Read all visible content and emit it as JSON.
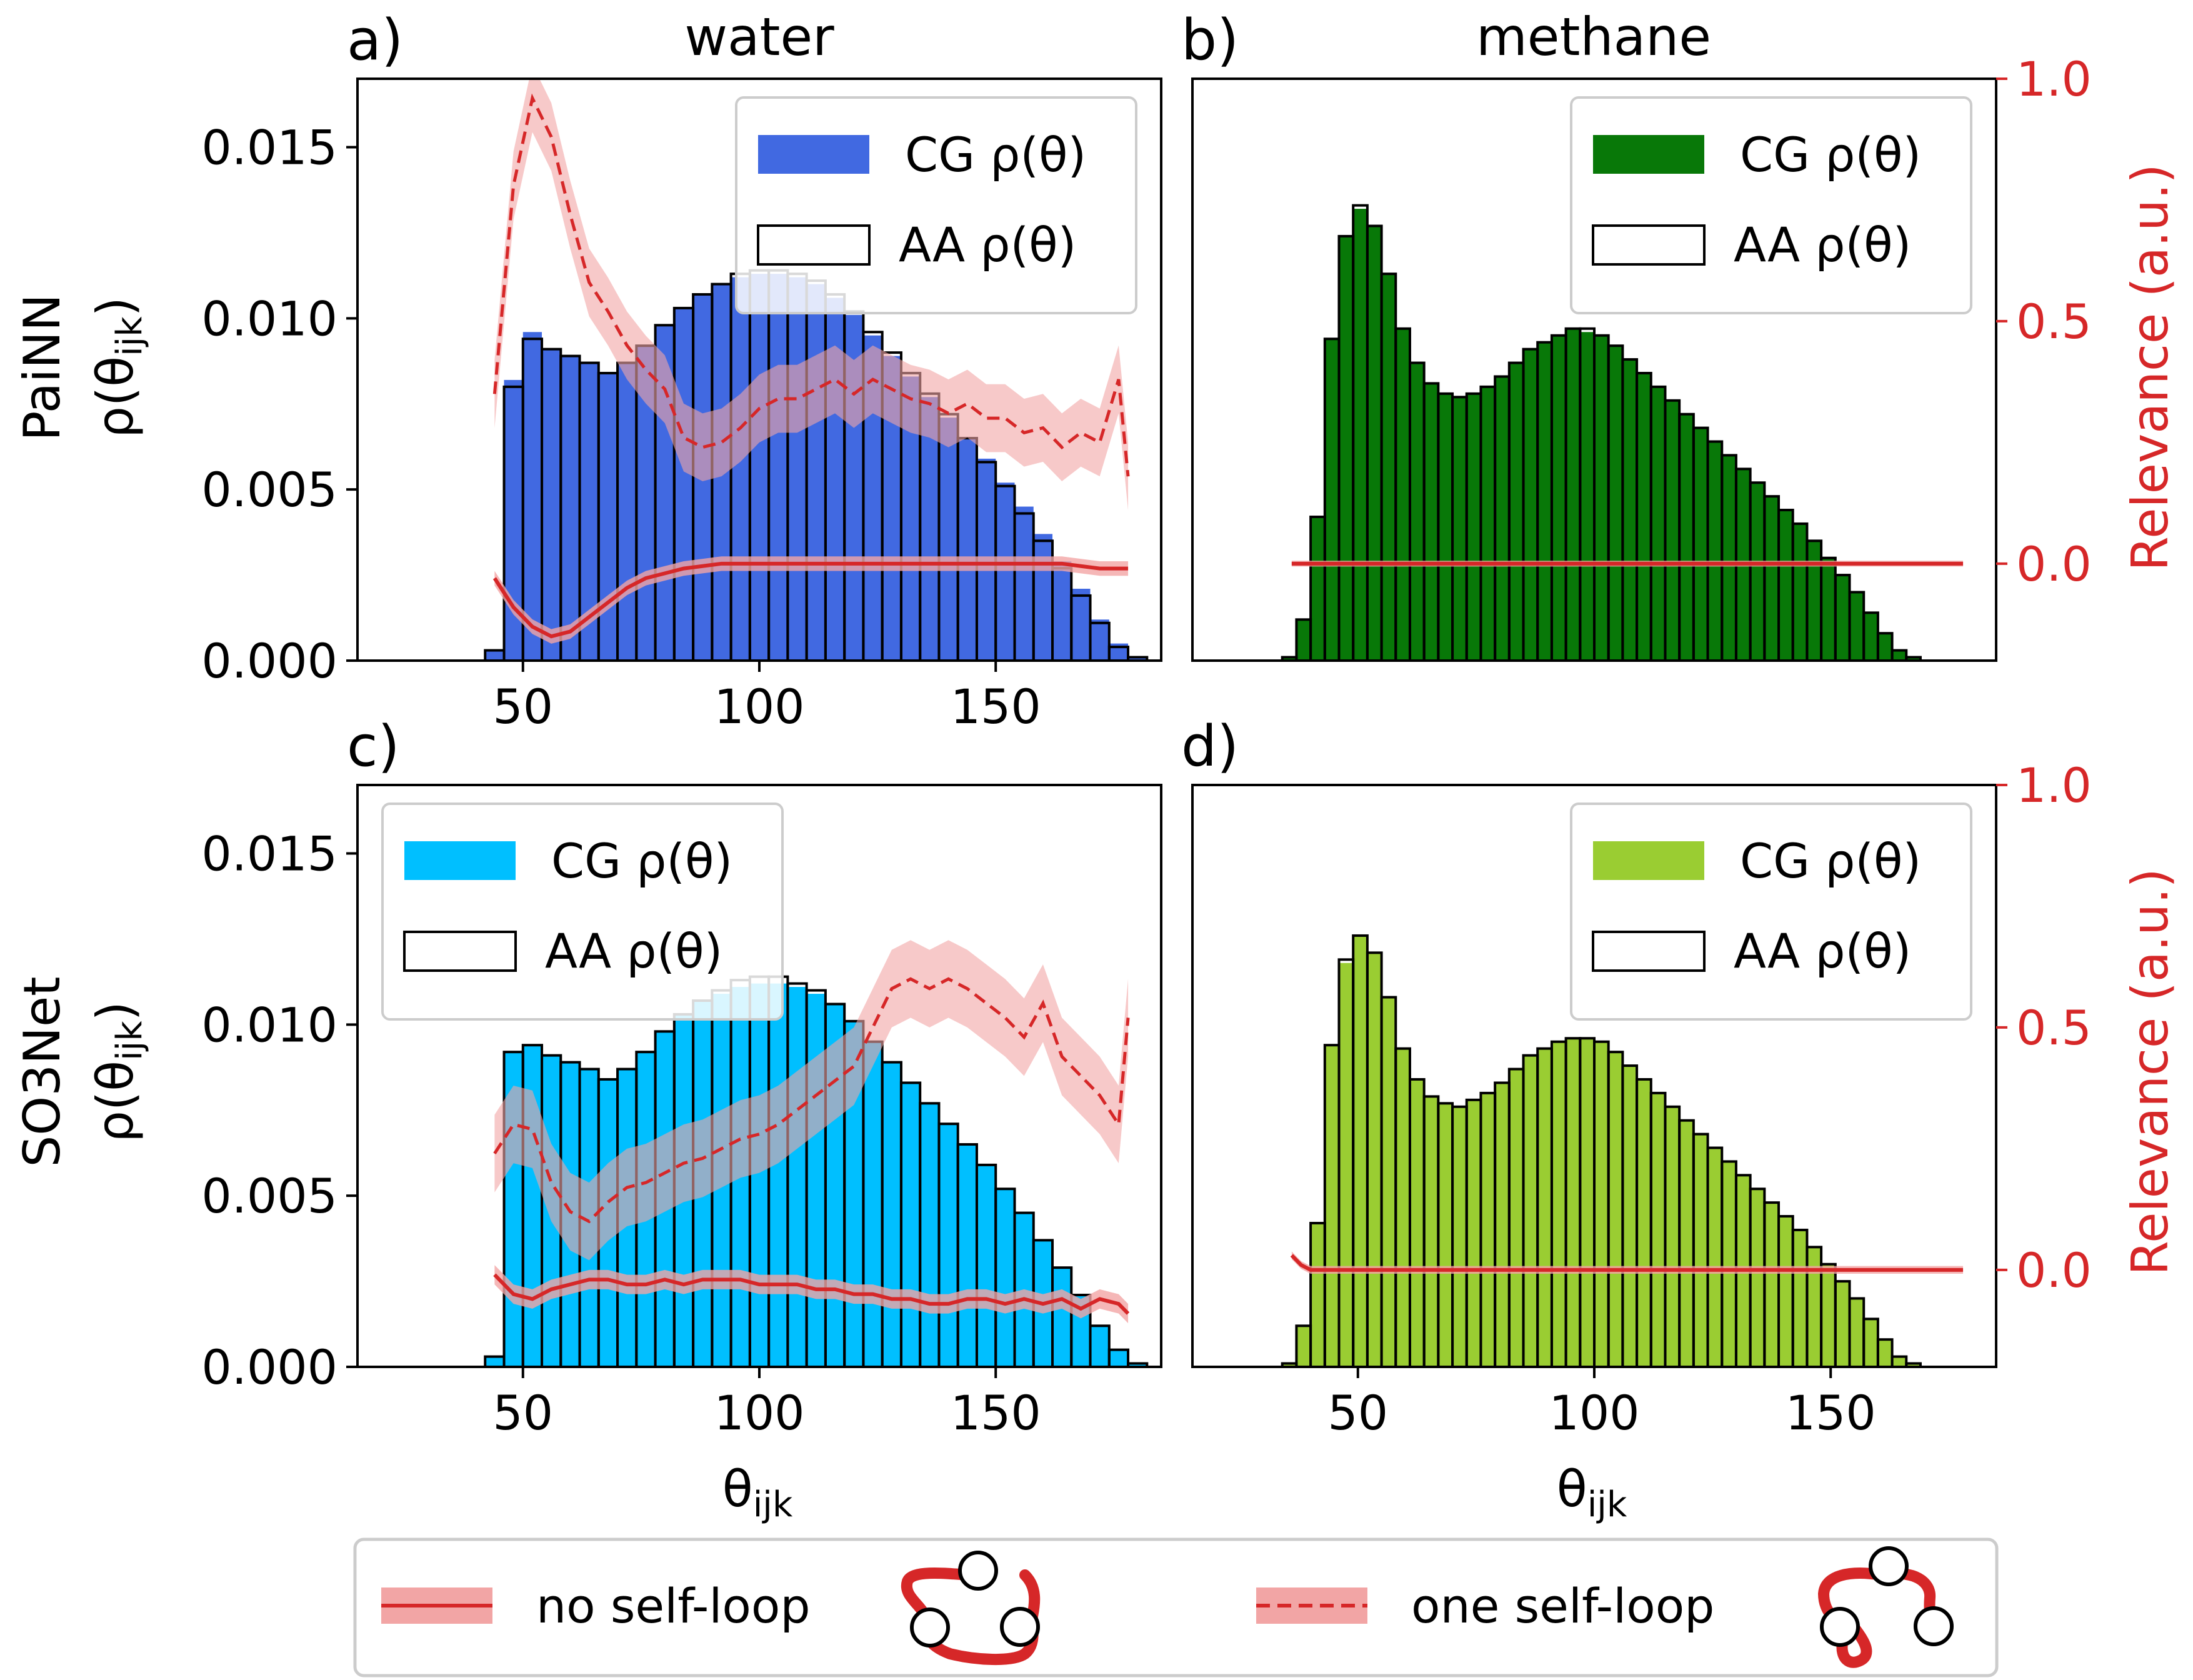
{
  "figure": {
    "column_titles": [
      "water",
      "methane"
    ],
    "row_titles": [
      "PaiNN",
      "SO3Net"
    ],
    "ylabel_hist": "ρ(θ",
    "ylabel_hist_sub": "ijk",
    "ylabel_right": "Relevance (a.u.)",
    "xlabel": "θ",
    "xlabel_sub": "ijk"
  },
  "colors": {
    "water_painn": "#4169e1",
    "methane_painn": "#087808",
    "water_so3net": "#00bfff",
    "methane_so3net": "#9acd32",
    "relevance": "#d62728",
    "band": "#f2a5a5"
  },
  "legend_bottom": {
    "no_self_loop": "no self-loop",
    "one_self_loop": "one self-loop"
  },
  "chart_data": [
    {
      "panel": "a)",
      "title": "water",
      "type": "bar",
      "xlim": [
        15,
        185
      ],
      "ylim": [
        0,
        0.017
      ],
      "y2lim": [
        -0.2,
        1.0
      ],
      "xticks": [
        "50",
        "100",
        "150"
      ],
      "yticks": [
        "0.000",
        "0.005",
        "0.010",
        "0.015"
      ],
      "y2ticks": [],
      "legend": {
        "cg": "CG ρ(θ)",
        "aa": "AA ρ(θ)",
        "position": "top-right"
      },
      "bin_edges_start": 42,
      "bin_width": 4,
      "cg_values": [
        0.0003,
        0.0082,
        0.0096,
        0.0091,
        0.0089,
        0.0087,
        0.0084,
        0.0087,
        0.0092,
        0.0098,
        0.0103,
        0.0107,
        0.011,
        0.0112,
        0.0113,
        0.0113,
        0.0112,
        0.011,
        0.0106,
        0.0101,
        0.0095,
        0.0089,
        0.0083,
        0.0077,
        0.0071,
        0.0065,
        0.0059,
        0.0052,
        0.0045,
        0.0037,
        0.0029,
        0.0021,
        0.0012,
        0.0005,
        0.0001
      ],
      "aa_values": [
        0.0003,
        0.008,
        0.0094,
        0.0091,
        0.0089,
        0.0087,
        0.0084,
        0.0087,
        0.0092,
        0.0098,
        0.0103,
        0.0107,
        0.011,
        0.0113,
        0.0114,
        0.0114,
        0.0113,
        0.0111,
        0.0107,
        0.0102,
        0.0096,
        0.009,
        0.0084,
        0.0078,
        0.0072,
        0.0065,
        0.0058,
        0.0051,
        0.0043,
        0.0035,
        0.0027,
        0.0019,
        0.0011,
        0.0004,
        0.0001
      ],
      "relevance_x": [
        44,
        48,
        52,
        56,
        60,
        64,
        68,
        72,
        76,
        80,
        84,
        88,
        92,
        96,
        100,
        104,
        108,
        112,
        116,
        120,
        124,
        128,
        132,
        136,
        140,
        144,
        148,
        152,
        156,
        160,
        164,
        168,
        172,
        176,
        178
      ],
      "no_self_loop": [
        -0.03,
        -0.09,
        -0.13,
        -0.15,
        -0.14,
        -0.11,
        -0.08,
        -0.05,
        -0.03,
        -0.02,
        -0.01,
        -0.005,
        0.0,
        0.0,
        0.0,
        0.0,
        0.0,
        0.0,
        0.0,
        0.0,
        0.0,
        0.0,
        0.0,
        0.0,
        0.0,
        0.0,
        0.0,
        0.0,
        0.0,
        0.0,
        0.0,
        -0.005,
        -0.01,
        -0.01,
        -0.01
      ],
      "no_self_loop_band": 0.015,
      "one_self_loop": [
        0.35,
        0.78,
        0.96,
        0.88,
        0.72,
        0.58,
        0.52,
        0.45,
        0.4,
        0.36,
        0.26,
        0.24,
        0.25,
        0.28,
        0.32,
        0.34,
        0.34,
        0.36,
        0.38,
        0.35,
        0.38,
        0.36,
        0.34,
        0.33,
        0.31,
        0.33,
        0.3,
        0.3,
        0.27,
        0.28,
        0.24,
        0.27,
        0.25,
        0.38,
        0.18
      ],
      "one_self_loop_band": 0.07
    },
    {
      "panel": "b)",
      "title": "methane",
      "type": "bar",
      "xlim": [
        15,
        185
      ],
      "ylim": [
        0,
        0.017
      ],
      "y2lim": [
        -0.2,
        1.0
      ],
      "xticks": [],
      "yticks": [],
      "y2ticks": [
        "0.0",
        "0.5",
        "1.0"
      ],
      "legend": {
        "cg": "CG ρ(θ)",
        "aa": "AA ρ(θ)",
        "position": "top-right"
      },
      "bin_edges_start": 34,
      "bin_width": 3,
      "cg_values": [
        0.0001,
        0.0012,
        0.0042,
        0.0094,
        0.0124,
        0.0132,
        0.0127,
        0.0113,
        0.0097,
        0.0087,
        0.0081,
        0.0078,
        0.0077,
        0.0078,
        0.008,
        0.0083,
        0.0087,
        0.0091,
        0.0093,
        0.0095,
        0.0097,
        0.0096,
        0.0095,
        0.0092,
        0.0088,
        0.0084,
        0.008,
        0.0076,
        0.0072,
        0.0068,
        0.0064,
        0.006,
        0.0056,
        0.0052,
        0.0048,
        0.0044,
        0.004,
        0.0035,
        0.003,
        0.0025,
        0.002,
        0.0014,
        0.0008,
        0.0003,
        0.0001
      ],
      "aa_values": [
        0.0001,
        0.0012,
        0.0042,
        0.0094,
        0.0124,
        0.0133,
        0.0127,
        0.0113,
        0.0097,
        0.0087,
        0.0081,
        0.0078,
        0.0077,
        0.0078,
        0.008,
        0.0083,
        0.0087,
        0.0091,
        0.0093,
        0.0095,
        0.0097,
        0.0097,
        0.0095,
        0.0092,
        0.0088,
        0.0084,
        0.008,
        0.0076,
        0.0072,
        0.0068,
        0.0064,
        0.006,
        0.0056,
        0.0052,
        0.0048,
        0.0044,
        0.004,
        0.0035,
        0.003,
        0.0025,
        0.002,
        0.0014,
        0.0008,
        0.0003,
        0.0001
      ],
      "relevance_x": [
        36,
        50,
        75,
        100,
        125,
        150,
        165,
        178
      ],
      "no_self_loop": [
        0.0,
        0.0,
        0.0,
        0.0,
        0.0,
        0.0,
        0.0,
        0.0
      ],
      "no_self_loop_band": 0.006
    },
    {
      "panel": "c)",
      "title": "",
      "type": "bar",
      "xlim": [
        15,
        185
      ],
      "ylim": [
        0,
        0.017
      ],
      "y2lim": [
        -0.2,
        1.0
      ],
      "xticks": [
        "50",
        "100",
        "150"
      ],
      "yticks": [
        "0.000",
        "0.005",
        "0.010",
        "0.015"
      ],
      "y2ticks": [],
      "legend": {
        "cg": "CG ρ(θ)",
        "aa": "AA ρ(θ)",
        "position": "top-left"
      },
      "bin_edges_start": 42,
      "bin_width": 4,
      "cg_values": [
        0.0003,
        0.0092,
        0.0094,
        0.0091,
        0.0089,
        0.0087,
        0.0084,
        0.0087,
        0.0092,
        0.0098,
        0.0103,
        0.0107,
        0.0109,
        0.0111,
        0.0112,
        0.0112,
        0.0111,
        0.0109,
        0.0106,
        0.0101,
        0.0095,
        0.0089,
        0.0083,
        0.0077,
        0.0071,
        0.0065,
        0.0059,
        0.0052,
        0.0045,
        0.0037,
        0.0029,
        0.0021,
        0.0012,
        0.0005,
        0.0001
      ],
      "aa_values": [
        0.0003,
        0.0092,
        0.0094,
        0.0091,
        0.0089,
        0.0087,
        0.0084,
        0.0087,
        0.0092,
        0.0098,
        0.0103,
        0.0107,
        0.011,
        0.0113,
        0.0114,
        0.0114,
        0.0112,
        0.011,
        0.0106,
        0.0101,
        0.0095,
        0.0089,
        0.0083,
        0.0077,
        0.0071,
        0.0065,
        0.0059,
        0.0052,
        0.0045,
        0.0037,
        0.0029,
        0.0021,
        0.0012,
        0.0005,
        0.0001
      ],
      "relevance_x": [
        44,
        48,
        52,
        56,
        60,
        64,
        68,
        72,
        76,
        80,
        84,
        88,
        92,
        96,
        100,
        104,
        108,
        112,
        116,
        120,
        124,
        128,
        132,
        136,
        140,
        144,
        148,
        152,
        156,
        160,
        164,
        168,
        172,
        176,
        178
      ],
      "no_self_loop": [
        -0.01,
        -0.05,
        -0.06,
        -0.04,
        -0.03,
        -0.02,
        -0.02,
        -0.03,
        -0.03,
        -0.02,
        -0.03,
        -0.02,
        -0.02,
        -0.02,
        -0.03,
        -0.03,
        -0.03,
        -0.04,
        -0.04,
        -0.05,
        -0.05,
        -0.06,
        -0.06,
        -0.07,
        -0.07,
        -0.06,
        -0.06,
        -0.07,
        -0.06,
        -0.07,
        -0.06,
        -0.08,
        -0.06,
        -0.07,
        -0.09
      ],
      "no_self_loop_band": 0.02,
      "one_self_loop": [
        0.24,
        0.3,
        0.29,
        0.18,
        0.12,
        0.1,
        0.14,
        0.17,
        0.18,
        0.2,
        0.22,
        0.23,
        0.25,
        0.27,
        0.28,
        0.3,
        0.33,
        0.36,
        0.39,
        0.42,
        0.5,
        0.58,
        0.6,
        0.58,
        0.6,
        0.58,
        0.55,
        0.52,
        0.48,
        0.55,
        0.44,
        0.4,
        0.36,
        0.3,
        0.52
      ],
      "one_self_loop_band": 0.08
    },
    {
      "panel": "d)",
      "title": "",
      "type": "bar",
      "xlim": [
        15,
        185
      ],
      "ylim": [
        0,
        0.017
      ],
      "y2lim": [
        -0.2,
        1.0
      ],
      "xticks": [
        "50",
        "100",
        "150"
      ],
      "yticks": [],
      "y2ticks": [
        "0.0",
        "0.5",
        "1.0"
      ],
      "legend": {
        "cg": "CG ρ(θ)",
        "aa": "AA ρ(θ)",
        "position": "top-right"
      },
      "bin_edges_start": 34,
      "bin_width": 3,
      "cg_values": [
        0.0001,
        0.0012,
        0.0042,
        0.0094,
        0.0118,
        0.0126,
        0.0121,
        0.0108,
        0.0093,
        0.0084,
        0.0079,
        0.0077,
        0.0076,
        0.0078,
        0.008,
        0.0083,
        0.0087,
        0.0091,
        0.0093,
        0.0095,
        0.0096,
        0.0096,
        0.0095,
        0.0092,
        0.0088,
        0.0084,
        0.008,
        0.0076,
        0.0072,
        0.0068,
        0.0064,
        0.006,
        0.0056,
        0.0052,
        0.0048,
        0.0044,
        0.004,
        0.0035,
        0.003,
        0.0025,
        0.002,
        0.0014,
        0.0008,
        0.0003,
        0.0001
      ],
      "aa_values": [
        0.0001,
        0.0012,
        0.0042,
        0.0094,
        0.0119,
        0.0126,
        0.0121,
        0.0108,
        0.0093,
        0.0084,
        0.0079,
        0.0077,
        0.0076,
        0.0078,
        0.008,
        0.0083,
        0.0087,
        0.0091,
        0.0093,
        0.0095,
        0.0096,
        0.0096,
        0.0095,
        0.0092,
        0.0088,
        0.0084,
        0.008,
        0.0076,
        0.0072,
        0.0068,
        0.0064,
        0.006,
        0.0056,
        0.0052,
        0.0048,
        0.0044,
        0.004,
        0.0035,
        0.003,
        0.0025,
        0.002,
        0.0014,
        0.0008,
        0.0003,
        0.0001
      ],
      "relevance_x": [
        36,
        38,
        40,
        50,
        75,
        100,
        125,
        150,
        165,
        178
      ],
      "no_self_loop": [
        0.03,
        0.01,
        0.0,
        0.0,
        0.0,
        0.0,
        0.0,
        0.0,
        0.0,
        0.0
      ],
      "no_self_loop_band": 0.008
    }
  ]
}
